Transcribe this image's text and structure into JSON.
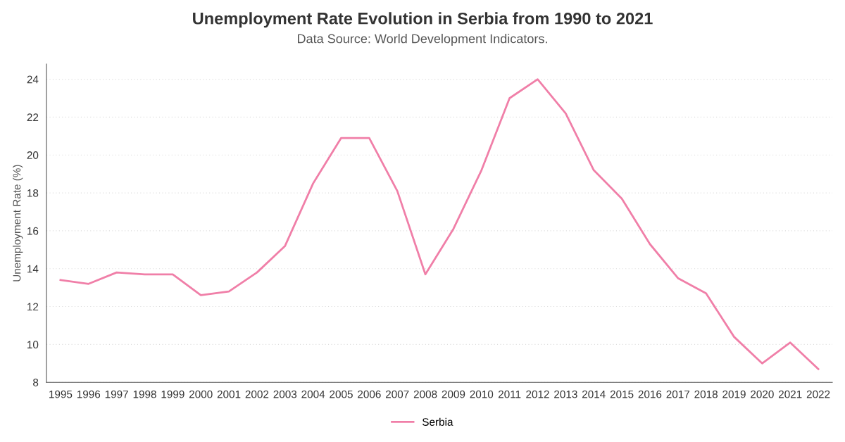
{
  "chart_data": {
    "type": "line",
    "title": "Unemployment Rate Evolution in Serbia from 1990 to 2021",
    "subtitle": "Data Source: World Development Indicators.",
    "ylabel": "Unemployment Rate (%)",
    "categories": [
      "1995",
      "1996",
      "1997",
      "1998",
      "1999",
      "2000",
      "2001",
      "2002",
      "2003",
      "2004",
      "2005",
      "2006",
      "2007",
      "2008",
      "2009",
      "2010",
      "2011",
      "2012",
      "2013",
      "2014",
      "2015",
      "2016",
      "2017",
      "2018",
      "2019",
      "2020",
      "2021",
      "2022"
    ],
    "series": [
      {
        "name": "Serbia",
        "color": "#f07fa8",
        "values": [
          13.4,
          13.2,
          13.8,
          13.7,
          13.7,
          12.6,
          12.8,
          13.8,
          15.2,
          18.5,
          20.9,
          20.9,
          18.1,
          13.7,
          16.1,
          19.2,
          23.0,
          24.0,
          22.2,
          19.2,
          17.7,
          15.3,
          13.5,
          12.7,
          10.4,
          9.0,
          10.1,
          8.7
        ]
      }
    ],
    "ylim": [
      8,
      24.8
    ],
    "yticks": [
      8,
      10,
      12,
      14,
      16,
      18,
      20,
      22,
      24
    ],
    "grid": "y",
    "legend": "bottom",
    "marker": "none",
    "line_style": "solid"
  }
}
